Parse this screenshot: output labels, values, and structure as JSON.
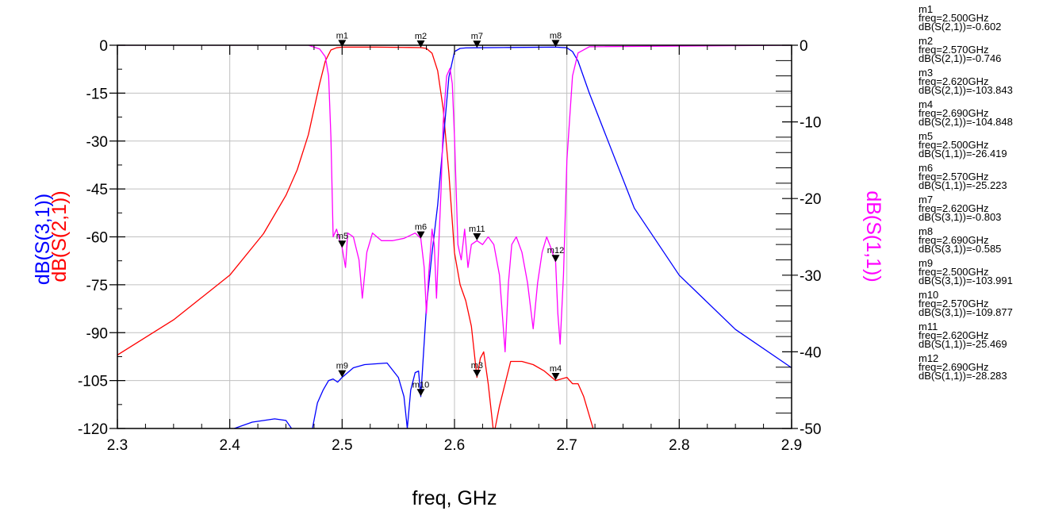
{
  "chart_data": {
    "type": "line",
    "xlabel": "freq, GHz",
    "ylabel_left_parts": [
      {
        "text": "dB(S(3,1))",
        "color": "#0000ff"
      },
      {
        "text": "dB(S(2,1))",
        "color": "#ff0000"
      }
    ],
    "ylabel_right": {
      "text": "dB(S(1,1))",
      "color": "#ff00ff"
    },
    "xlim": [
      2.3,
      2.9
    ],
    "ylim_left": [
      -120,
      0
    ],
    "ylim_right": [
      -50,
      0
    ],
    "x_ticks": [
      "2.3",
      "2.4",
      "2.5",
      "2.6",
      "2.7",
      "2.8",
      "2.9"
    ],
    "y_ticks_left": [
      "0",
      "-15",
      "-30",
      "-45",
      "-60",
      "-75",
      "-90",
      "-105",
      "-120"
    ],
    "y_ticks_right": [
      "0",
      "-10",
      "-20",
      "-30",
      "-40",
      "-50"
    ],
    "grid": true,
    "series": [
      {
        "name": "dB(S(2,1))",
        "axis": "left",
        "color": "#ff0000",
        "x": [
          2.3,
          2.35,
          2.4,
          2.43,
          2.45,
          2.46,
          2.47,
          2.475,
          2.48,
          2.485,
          2.49,
          2.495,
          2.5,
          2.53,
          2.56,
          2.57,
          2.575,
          2.58,
          2.585,
          2.59,
          2.595,
          2.6,
          2.605,
          2.61,
          2.615,
          2.62,
          2.623,
          2.626,
          2.63,
          2.635,
          2.64,
          2.65,
          2.66,
          2.67,
          2.68,
          2.69,
          2.7,
          2.705,
          2.71,
          2.715,
          2.725
        ],
        "y": [
          -97,
          -86,
          -72,
          -59,
          -47,
          -39,
          -28,
          -20,
          -12,
          -5,
          -1.5,
          -0.8,
          -0.6,
          -0.6,
          -0.7,
          -0.75,
          -1,
          -2.5,
          -8,
          -20,
          -40,
          -65,
          -75,
          -80,
          -88,
          -104,
          -98,
          -96,
          -106,
          -122,
          -113,
          -99,
          -99,
          -100,
          -102,
          -105,
          -104,
          -106,
          -106,
          -110,
          -122
        ]
      },
      {
        "name": "dB(S(3,1))",
        "axis": "left",
        "color": "#0000ff",
        "x": [
          2.4,
          2.42,
          2.44,
          2.45,
          2.457,
          2.473,
          2.478,
          2.483,
          2.488,
          2.492,
          2.496,
          2.5,
          2.51,
          2.52,
          2.54,
          2.55,
          2.555,
          2.558,
          2.561,
          2.565,
          2.568,
          2.57,
          2.575,
          2.58,
          2.585,
          2.59,
          2.595,
          2.6,
          2.605,
          2.61,
          2.62,
          2.65,
          2.69,
          2.7,
          2.705,
          2.71,
          2.72,
          2.74,
          2.76,
          2.8,
          2.85,
          2.9
        ],
        "y": [
          -120.5,
          -118,
          -117,
          -117.5,
          -121,
          -121,
          -112,
          -108,
          -105,
          -104.5,
          -105.5,
          -104,
          -101,
          -100,
          -99.5,
          -104,
          -110,
          -120,
          -108,
          -102.5,
          -102,
          -110,
          -82,
          -65,
          -50,
          -30,
          -10,
          -2,
          -1,
          -0.85,
          -0.8,
          -0.7,
          -0.6,
          -0.8,
          -2,
          -5,
          -15,
          -33,
          -51,
          -72,
          -89,
          -101
        ]
      },
      {
        "name": "dB(S(1,1))",
        "axis": "right",
        "color": "#ff00ff",
        "x": [
          2.3,
          2.47,
          2.48,
          2.485,
          2.488,
          2.49,
          2.492,
          2.495,
          2.498,
          2.5,
          2.503,
          2.505,
          2.51,
          2.515,
          2.518,
          2.522,
          2.527,
          2.535,
          2.545,
          2.555,
          2.565,
          2.57,
          2.573,
          2.575,
          2.577,
          2.58,
          2.582,
          2.584,
          2.586,
          2.588,
          2.59,
          2.593,
          2.596,
          2.598,
          2.6,
          2.603,
          2.606,
          2.609,
          2.612,
          2.615,
          2.62,
          2.625,
          2.63,
          2.635,
          2.64,
          2.645,
          2.648,
          2.651,
          2.655,
          2.66,
          2.665,
          2.67,
          2.674,
          2.678,
          2.682,
          2.686,
          2.69,
          2.692,
          2.694,
          2.697,
          2.7,
          2.705,
          2.71,
          2.72,
          2.9
        ],
        "y": [
          0,
          0,
          -0.5,
          -1.5,
          -4,
          -12,
          -25,
          -24,
          -25.5,
          -26.4,
          -29,
          -24.5,
          -25,
          -28,
          -33,
          -27,
          -24.5,
          -25.5,
          -25.5,
          -25.2,
          -24.5,
          -25.2,
          -29,
          -35,
          -30,
          -24,
          -26,
          -33,
          -26,
          -19,
          -10,
          -4,
          -3,
          -5,
          -12,
          -26,
          -28,
          -24,
          -29,
          -26,
          -25.5,
          -26,
          -25,
          -26,
          -30,
          -40,
          -31,
          -26,
          -25,
          -27,
          -31,
          -37,
          -31,
          -27,
          -25,
          -26.5,
          -28.3,
          -35,
          -39,
          -30,
          -15,
          -4,
          -1,
          -0.2,
          0
        ]
      }
    ],
    "markers": [
      {
        "name": "m1",
        "freq": "2.500GHz",
        "expr": "dB(S(2,1))",
        "value": -0.602,
        "x": 2.5,
        "axis": "left"
      },
      {
        "name": "m2",
        "freq": "2.570GHz",
        "expr": "dB(S(2,1))",
        "value": -0.746,
        "x": 2.57,
        "axis": "left"
      },
      {
        "name": "m3",
        "freq": "2.620GHz",
        "expr": "dB(S(2,1))",
        "value": -103.843,
        "x": 2.62,
        "axis": "left"
      },
      {
        "name": "m4",
        "freq": "2.690GHz",
        "expr": "dB(S(2,1))",
        "value": -104.848,
        "x": 2.69,
        "axis": "left"
      },
      {
        "name": "m5",
        "freq": "2.500GHz",
        "expr": "dB(S(1,1))",
        "value": -26.419,
        "x": 2.5,
        "axis": "right"
      },
      {
        "name": "m6",
        "freq": "2.570GHz",
        "expr": "dB(S(1,1))",
        "value": -25.223,
        "x": 2.57,
        "axis": "right"
      },
      {
        "name": "m7",
        "freq": "2.620GHz",
        "expr": "dB(S(3,1))",
        "value": -0.803,
        "x": 2.62,
        "axis": "left"
      },
      {
        "name": "m8",
        "freq": "2.690GHz",
        "expr": "dB(S(3,1))",
        "value": -0.585,
        "x": 2.69,
        "axis": "left"
      },
      {
        "name": "m9",
        "freq": "2.500GHz",
        "expr": "dB(S(3,1))",
        "value": -103.991,
        "x": 2.5,
        "axis": "left"
      },
      {
        "name": "m10",
        "freq": "2.570GHz",
        "expr": "dB(S(3,1))",
        "value": -109.877,
        "x": 2.57,
        "axis": "left"
      },
      {
        "name": "m11",
        "freq": "2.620GHz",
        "expr": "dB(S(1,1))",
        "value": -25.469,
        "x": 2.62,
        "axis": "right"
      },
      {
        "name": "m12",
        "freq": "2.690GHz",
        "expr": "dB(S(1,1))",
        "value": -28.283,
        "x": 2.69,
        "axis": "right"
      }
    ]
  }
}
